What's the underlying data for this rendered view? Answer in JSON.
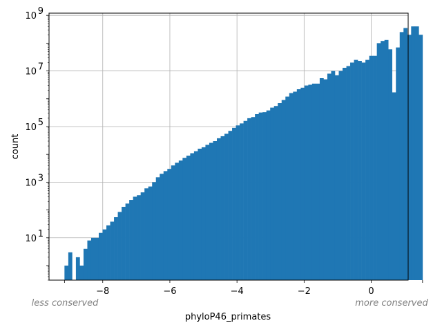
{
  "chart_data": {
    "type": "bar",
    "subtype": "histogram",
    "xlabel": "phyloP46_primates",
    "ylabel": "count",
    "yscale": "log",
    "grid": true,
    "xlim": [
      -9.6,
      1.1
    ],
    "ylim": [
      0.3,
      1200000000
    ],
    "x_ticks": [
      -8,
      -6,
      -4,
      -2,
      0
    ],
    "x_tick_labels": [
      "−8",
      "−6",
      "−4",
      "−2",
      "0"
    ],
    "y_ticks": [
      10,
      1000,
      100000,
      10000000,
      1000000000
    ],
    "y_tick_labels": [
      {
        "base": "10",
        "exp": "1"
      },
      {
        "base": "10",
        "exp": "3"
      },
      {
        "base": "10",
        "exp": "5"
      },
      {
        "base": "10",
        "exp": "7"
      },
      {
        "base": "10",
        "exp": "9"
      }
    ],
    "corner_notes": {
      "left": "less conserved",
      "right": "more conserved"
    },
    "bar_color": "#1f77b4",
    "bin_start": -9.14,
    "bin_width": 0.1135,
    "counts": [
      1,
      3,
      0,
      2,
      1,
      4,
      8,
      10,
      10,
      15,
      20,
      28,
      38,
      55,
      85,
      130,
      170,
      230,
      300,
      340,
      430,
      600,
      700,
      1000,
      1500,
      2000,
      2500,
      3000,
      4000,
      5000,
      6000,
      7500,
      9000,
      11000,
      13000,
      16000,
      18000,
      22000,
      26000,
      30000,
      38000,
      45000,
      55000,
      70000,
      90000,
      110000,
      130000,
      160000,
      200000,
      220000,
      280000,
      320000,
      330000,
      380000,
      480000,
      550000,
      700000,
      900000,
      1200000,
      1600000,
      1800000,
      2200000,
      2500000,
      3000000,
      3200000,
      3500000,
      3500000,
      5500000,
      5000000,
      8000000,
      10000000,
      7000000,
      10000000,
      13000000,
      15000000,
      20000000,
      25000000,
      23000000,
      20000000,
      25000000,
      35000000,
      35000000,
      100000000,
      120000000,
      130000000,
      60000000,
      1700000,
      70000000,
      250000000,
      350000000,
      200000000,
      400000000,
      400000000,
      200000000
    ]
  }
}
